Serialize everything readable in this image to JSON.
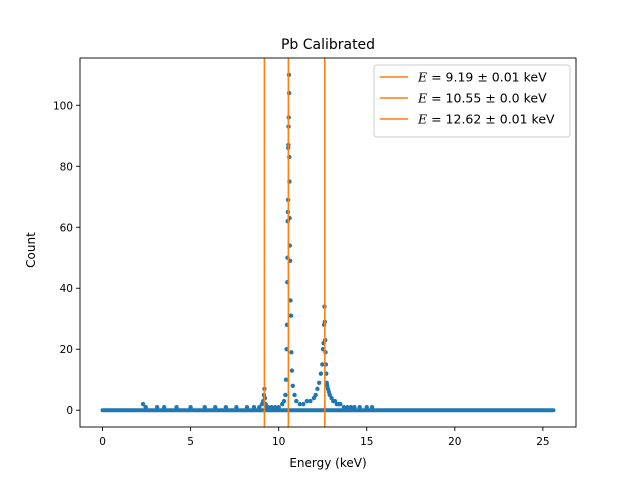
{
  "chart_data": {
    "type": "scatter",
    "title": "Pb Calibrated",
    "xlabel": "Energy (keV)",
    "ylabel": "Count",
    "xlim": [
      -1.28,
      26.88
    ],
    "ylim": [
      -5.5,
      115.5
    ],
    "xticks": [
      0,
      5,
      10,
      15,
      20,
      25
    ],
    "yticks": [
      0,
      20,
      40,
      60,
      80,
      100
    ],
    "grid": false,
    "legend_position": "top-right",
    "point_color": "#1f77b4",
    "line_color": "#ff7f0e",
    "background_range": [
      0,
      25.6
    ],
    "vlines": [
      {
        "x": 9.19,
        "label_prefix": "E",
        "label_value": "9.19 ± 0.01 keV"
      },
      {
        "x": 10.55,
        "label_prefix": "E",
        "label_value": "10.55 ± 0.0 keV"
      },
      {
        "x": 12.62,
        "label_prefix": "E",
        "label_value": "12.62 ± 0.01 keV"
      }
    ],
    "series": [
      {
        "x": [
          2.3,
          2.45,
          3.1,
          3.5,
          4.2,
          5.0,
          5.8,
          6.4,
          7.0,
          7.6,
          8.2,
          8.6,
          8.9,
          9.05,
          9.12,
          9.16,
          9.19,
          9.22,
          9.26,
          9.32,
          9.4,
          9.6,
          9.8,
          10.0,
          10.2,
          10.3,
          10.38,
          10.42,
          10.45,
          10.47,
          10.49,
          10.5,
          10.51,
          10.52,
          10.53,
          10.54,
          10.55,
          10.56,
          10.57,
          10.58,
          10.59,
          10.6,
          10.61,
          10.62,
          10.63,
          10.65,
          10.67,
          10.7,
          10.72,
          10.75,
          10.8,
          10.9,
          11.0,
          11.2,
          11.4,
          11.6,
          11.8,
          12.0,
          12.1,
          12.2,
          12.3,
          12.4,
          12.48,
          12.52,
          12.55,
          12.58,
          12.6,
          12.62,
          12.64,
          12.66,
          12.68,
          12.7,
          12.73,
          12.76,
          12.8,
          12.85,
          12.9,
          13.0,
          13.1,
          13.2,
          13.3,
          13.4,
          13.5,
          13.7,
          13.9,
          14.1,
          14.3,
          14.6,
          15.0,
          15.3
        ],
        "y": [
          2,
          1,
          1,
          1,
          1,
          1,
          1,
          1,
          1,
          1,
          1,
          1,
          1,
          2,
          3,
          5,
          7,
          4,
          2,
          1,
          1,
          1,
          1,
          1,
          2,
          3,
          5,
          10,
          20,
          28,
          42,
          50,
          62,
          65,
          69,
          86,
          87,
          93,
          96,
          110,
          104,
          83,
          75,
          63,
          54,
          49,
          36,
          31,
          19,
          13,
          8,
          5,
          3,
          2,
          2,
          3,
          3,
          4,
          5,
          7,
          9,
          12,
          15,
          20,
          22,
          28,
          34,
          29,
          23,
          19,
          15,
          12,
          9,
          8,
          7,
          6,
          5,
          4,
          3,
          3,
          2,
          2,
          2,
          1,
          1,
          1,
          1,
          1,
          1,
          1
        ]
      }
    ]
  }
}
